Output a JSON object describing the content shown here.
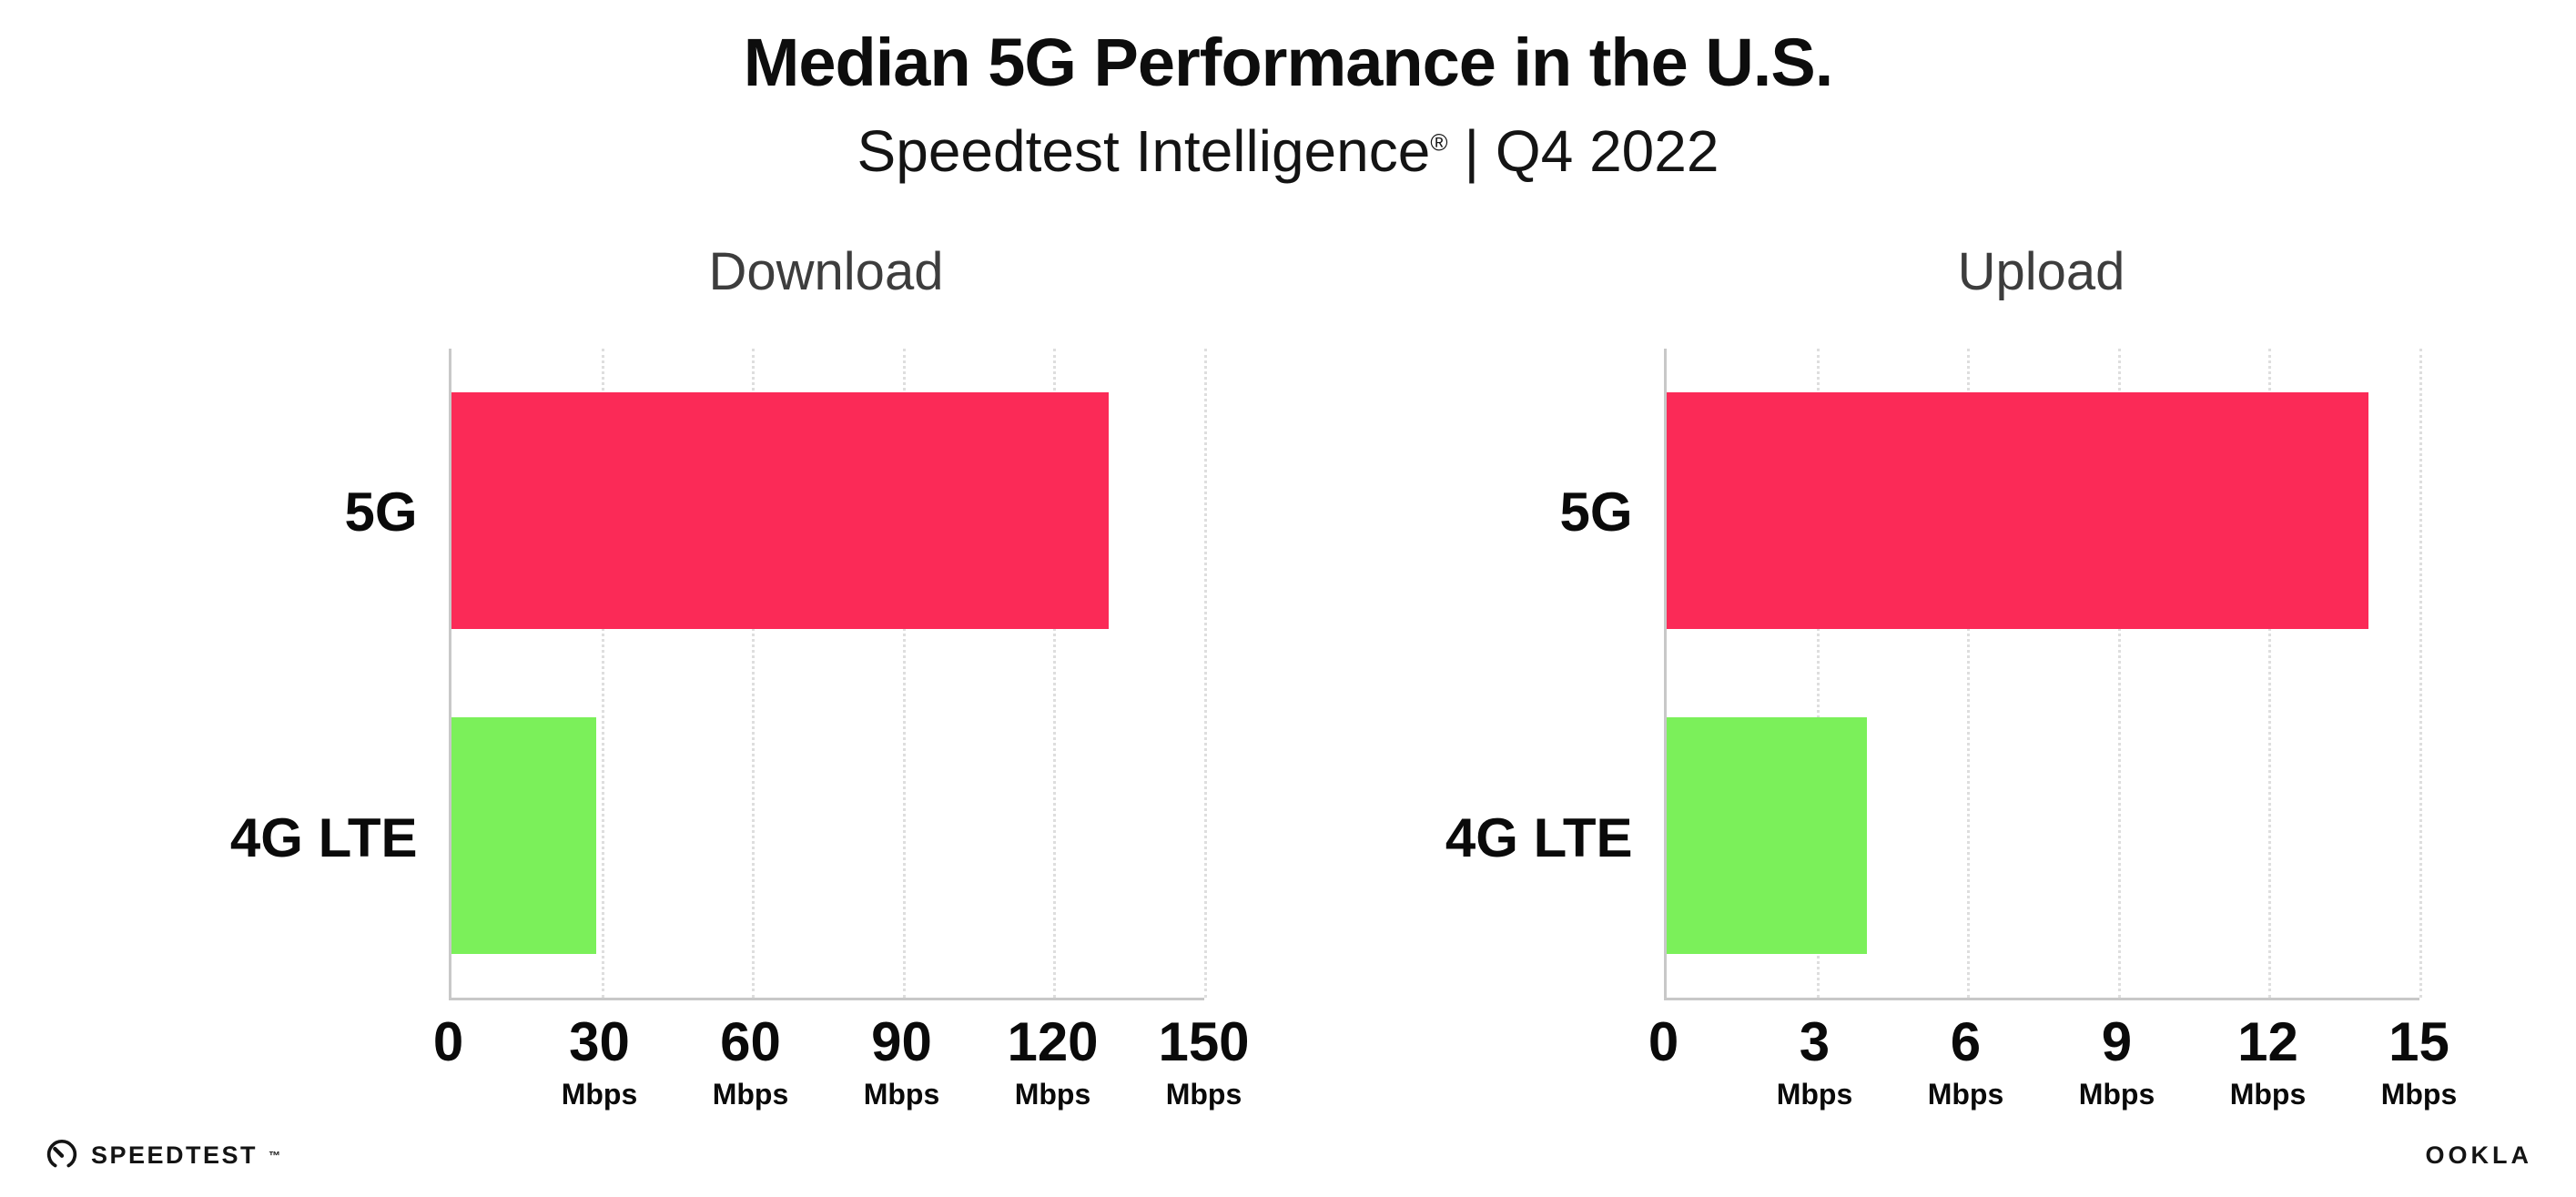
{
  "header": {
    "title": "Median 5G Performance in the U.S.",
    "subtitle_brand": "Speedtest Intelligence",
    "subtitle_reg": "®",
    "subtitle_rest": "| Q4 2022"
  },
  "colors": {
    "bar_5g": "#FB2A57",
    "bar_4g_lte": "#7BF05A",
    "axis_line": "#C8C8C8",
    "gridline": "#DEDEDE",
    "text": "#0A0A0A",
    "chart_title_text": "#3D3D3D"
  },
  "chart_data": [
    {
      "type": "bar",
      "orientation": "horizontal",
      "title": "Download",
      "categories": [
        "5G",
        "4G LTE"
      ],
      "values": [
        131,
        29
      ],
      "unit": "Mbps",
      "xlim": [
        0,
        150
      ],
      "xticks": [
        0,
        30,
        60,
        90,
        120,
        150
      ],
      "bar_colors": [
        "#FB2A57",
        "#7BF05A"
      ],
      "grid": "dotted-vertical",
      "legend": "none"
    },
    {
      "type": "bar",
      "orientation": "horizontal",
      "title": "Upload",
      "categories": [
        "5G",
        "4G LTE"
      ],
      "values": [
        14,
        4
      ],
      "unit": "Mbps",
      "xlim": [
        0,
        15
      ],
      "xticks": [
        0,
        3,
        6,
        9,
        12,
        15
      ],
      "bar_colors": [
        "#FB2A57",
        "#7BF05A"
      ],
      "grid": "dotted-vertical",
      "legend": "none"
    }
  ],
  "footer": {
    "speedtest_logo_text": "SPEEDTEST",
    "speedtest_tm": "™",
    "ookla_logo_text": "OOKLA"
  }
}
